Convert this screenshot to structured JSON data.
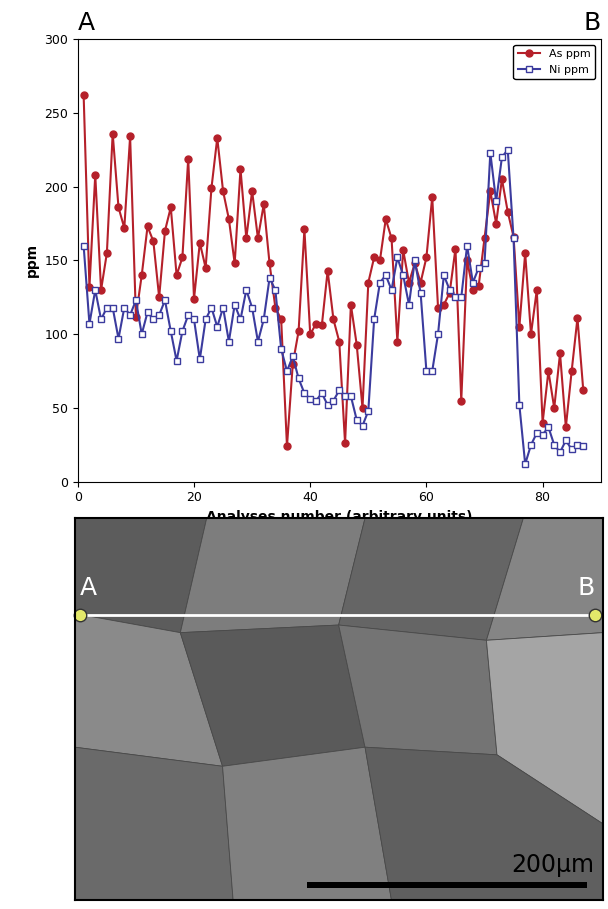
{
  "chart_data": {
    "type": "line",
    "annotations": [
      "A",
      "B"
    ],
    "x_label": "Analyses number (arbitrary units)",
    "y_label": "ppm",
    "x": [
      1,
      2,
      3,
      4,
      5,
      6,
      7,
      8,
      9,
      10,
      11,
      12,
      13,
      14,
      15,
      16,
      17,
      18,
      19,
      20,
      21,
      22,
      23,
      24,
      25,
      26,
      27,
      28,
      29,
      30,
      31,
      32,
      33,
      34,
      35,
      36,
      37,
      38,
      39,
      40,
      41,
      42,
      43,
      44,
      45,
      46,
      47,
      48,
      49,
      50,
      51,
      52,
      53,
      54,
      55,
      56,
      57,
      58,
      59,
      60,
      61,
      62,
      63,
      64,
      65,
      66,
      67,
      68,
      69,
      70,
      71,
      72,
      73,
      74,
      75,
      76,
      77,
      78,
      79,
      80,
      81,
      82,
      83,
      84,
      85,
      86,
      87
    ],
    "series": [
      {
        "name": "As ppm",
        "color": "#b5202a",
        "marker": "filled_circle",
        "values": [
          262,
          132,
          208,
          130,
          155,
          236,
          186,
          172,
          234,
          112,
          140,
          173,
          163,
          125,
          170,
          186,
          140,
          152,
          219,
          124,
          162,
          145,
          199,
          233,
          197,
          178,
          148,
          212,
          165,
          197,
          165,
          188,
          148,
          118,
          110,
          24,
          80,
          102,
          171,
          100,
          107,
          106,
          143,
          110,
          95,
          26,
          120,
          93,
          50,
          135,
          152,
          150,
          178,
          165,
          95,
          157,
          135,
          148,
          135,
          152,
          193,
          118,
          120,
          128,
          158,
          55,
          150,
          130,
          133,
          165,
          197,
          175,
          205,
          183,
          166,
          105,
          155,
          100,
          130,
          40,
          75,
          50,
          87,
          37,
          75,
          111,
          62
        ]
      },
      {
        "name": "Ni ppm",
        "color": "#3b3b9e",
        "marker": "open_square",
        "values": [
          160,
          107,
          130,
          110,
          118,
          118,
          97,
          118,
          113,
          123,
          100,
          115,
          110,
          113,
          123,
          102,
          82,
          102,
          113,
          110,
          83,
          110,
          118,
          105,
          118,
          95,
          120,
          110,
          130,
          118,
          95,
          110,
          138,
          130,
          90,
          75,
          85,
          70,
          60,
          56,
          55,
          60,
          52,
          55,
          62,
          58,
          58,
          42,
          38,
          48,
          110,
          135,
          140,
          130,
          152,
          140,
          120,
          150,
          128,
          75,
          75,
          100,
          140,
          130,
          125,
          125,
          160,
          135,
          145,
          148,
          223,
          190,
          220,
          225,
          165,
          52,
          12,
          25,
          33,
          32,
          37,
          25,
          20,
          28,
          22,
          25,
          24
        ]
      }
    ],
    "xlim": [
      0,
      90
    ],
    "xticks": [
      0,
      20,
      40,
      60,
      80
    ],
    "ylim": [
      0,
      300
    ],
    "yticks": [
      0,
      50,
      100,
      150,
      200,
      250,
      300
    ],
    "legend": "upper right",
    "grid": false
  },
  "image": {
    "points": [
      "A",
      "B"
    ],
    "scale_bar": "200μm"
  }
}
